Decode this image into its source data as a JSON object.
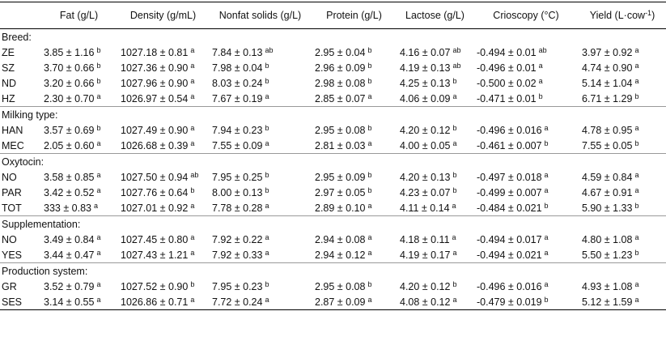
{
  "table": {
    "columns": [
      "Fat (g/L)",
      "Density (g/mL)",
      "Nonfat solids (g/L)",
      "Protein (g/L)",
      "Lactose (g/L)",
      "Crioscopy (°C)",
      [
        "Yield (L·cow",
        "-1",
        ")"
      ]
    ],
    "groups": [
      {
        "label": "Breed:",
        "rows": [
          {
            "label": "ZE",
            "cells": [
              [
                "3.85 ± 1.16",
                "b"
              ],
              [
                "1027.18 ± 0.81",
                "a"
              ],
              [
                "7.84 ± 0.13",
                "ab"
              ],
              [
                "2.95 ± 0.04",
                "b"
              ],
              [
                "4.16 ± 0.07",
                "ab"
              ],
              [
                "-0.494 ± 0.01",
                "ab"
              ],
              [
                "3.97 ± 0.92",
                "a"
              ]
            ]
          },
          {
            "label": "SZ",
            "cells": [
              [
                "3.70 ± 0.66",
                "b"
              ],
              [
                "1027.36 ± 0.90",
                "a"
              ],
              [
                "7.98 ± 0.04",
                "b"
              ],
              [
                "2.96 ± 0.09",
                "b"
              ],
              [
                "4.19 ± 0.13",
                "ab"
              ],
              [
                "-0.496 ± 0.01",
                "a"
              ],
              [
                "4.74 ± 0.90",
                "a"
              ]
            ]
          },
          {
            "label": "ND",
            "cells": [
              [
                "3.20 ± 0.66",
                "b"
              ],
              [
                "1027.96 ± 0.90",
                "a"
              ],
              [
                "8.03 ± 0.24",
                "b"
              ],
              [
                "2.98 ± 0.08",
                "b"
              ],
              [
                "4.25 ± 0.13",
                "b"
              ],
              [
                "-0.500 ± 0.02",
                "a"
              ],
              [
                "5.14 ± 1.04",
                "a"
              ]
            ]
          },
          {
            "label": "HZ",
            "cells": [
              [
                "2.30 ± 0.70",
                "a"
              ],
              [
                "1026.97 ± 0.54",
                "a"
              ],
              [
                "7.67 ± 0.19",
                "a"
              ],
              [
                "2.85 ± 0.07",
                "a"
              ],
              [
                "4.06 ± 0.09",
                "a"
              ],
              [
                "-0.471 ± 0.01",
                "b"
              ],
              [
                "6.71 ± 1.29",
                "b"
              ]
            ]
          }
        ]
      },
      {
        "label": "Milking type:",
        "rows": [
          {
            "label": "HAN",
            "cells": [
              [
                "3.57 ± 0.69",
                "b"
              ],
              [
                "1027.49 ± 0.90",
                "a"
              ],
              [
                "7.94 ± 0.23",
                "b"
              ],
              [
                "2.95 ± 0.08",
                "b"
              ],
              [
                "4.20 ± 0.12",
                "b"
              ],
              [
                "-0.496 ± 0.016",
                "a"
              ],
              [
                "4.78 ± 0.95",
                "a"
              ]
            ]
          },
          {
            "label": "MEC",
            "cells": [
              [
                "2.05 ± 0.60",
                "a"
              ],
              [
                "1026.68 ± 0.39",
                "a"
              ],
              [
                "7.55 ± 0.09",
                "a"
              ],
              [
                "2.81 ± 0.03",
                "a"
              ],
              [
                "4.00 ± 0.05",
                "a"
              ],
              [
                "-0.461 ± 0.007",
                "b"
              ],
              [
                "7.55 ± 0.05",
                "b"
              ]
            ]
          }
        ]
      },
      {
        "label": "Oxytocin:",
        "rows": [
          {
            "label": "NO",
            "cells": [
              [
                "3.58 ± 0.85",
                "a"
              ],
              [
                "1027.50 ± 0.94",
                "ab"
              ],
              [
                "7.95 ± 0.25",
                "b"
              ],
              [
                "2.95 ± 0.09",
                "b"
              ],
              [
                "4.20 ± 0.13",
                "b"
              ],
              [
                "-0.497 ± 0.018",
                "a"
              ],
              [
                "4.59 ± 0.84",
                "a"
              ]
            ]
          },
          {
            "label": "PAR",
            "cells": [
              [
                "3.42 ± 0.52",
                "a"
              ],
              [
                "1027.76 ± 0.64",
                "b"
              ],
              [
                "8.00 ± 0.13",
                "b"
              ],
              [
                "2.97 ± 0.05",
                "b"
              ],
              [
                "4.23 ± 0.07",
                "b"
              ],
              [
                "-0.499 ± 0.007",
                "a"
              ],
              [
                "4.67 ± 0.91",
                "a"
              ]
            ]
          },
          {
            "label": "TOT",
            "cells": [
              [
                "333 ± 0.83",
                "a"
              ],
              [
                "1027.01 ± 0.92",
                "a"
              ],
              [
                "7.78 ± 0.28",
                "a"
              ],
              [
                "2.89 ± 0.10",
                "a"
              ],
              [
                "4.11 ± 0.14",
                "a"
              ],
              [
                "-0.484 ± 0.021",
                "b"
              ],
              [
                "5.90 ± 1.33",
                "b"
              ]
            ]
          }
        ]
      },
      {
        "label": "Supplementation:",
        "rows": [
          {
            "label": "NO",
            "cells": [
              [
                "3.49 ± 0.84",
                "a"
              ],
              [
                "1027.45 ± 0.80",
                "a"
              ],
              [
                "7.92 ± 0.22",
                "a"
              ],
              [
                "2.94 ± 0.08",
                "a"
              ],
              [
                "4.18 ± 0.11",
                "a"
              ],
              [
                "-0.494 ± 0.017",
                "a"
              ],
              [
                "4.80 ± 1.08",
                "a"
              ]
            ]
          },
          {
            "label": "YES",
            "cells": [
              [
                "3.44 ± 0.47",
                "a"
              ],
              [
                "1027.43 ± 1.21",
                "a"
              ],
              [
                "7.92 ± 0.33",
                "a"
              ],
              [
                "2.94 ± 0.12",
                "a"
              ],
              [
                "4.19 ± 0.17",
                "a"
              ],
              [
                "-0.494 ± 0.021",
                "a"
              ],
              [
                "5.50 ± 1.23",
                "b"
              ]
            ]
          }
        ]
      },
      {
        "label": "Production system:",
        "rows": [
          {
            "label": "GR",
            "cells": [
              [
                "3.52 ± 0.79",
                "a"
              ],
              [
                "1027.52 ± 0.90",
                "b"
              ],
              [
                "7.95 ± 0.23",
                "b"
              ],
              [
                "2.95 ± 0.08",
                "b"
              ],
              [
                "4.20 ± 0.12",
                "b"
              ],
              [
                "-0.496 ± 0.016",
                "a"
              ],
              [
                "4.93 ± 1.08",
                "a"
              ]
            ]
          },
          {
            "label": "SES",
            "cells": [
              [
                "3.14 ± 0.55",
                "a"
              ],
              [
                "1026.86 ± 0.71",
                "a"
              ],
              [
                "7.72 ± 0.24",
                "a"
              ],
              [
                "2.87 ± 0.09",
                "a"
              ],
              [
                "4.08 ± 0.12",
                "a"
              ],
              [
                "-0.479 ± 0.019",
                "b"
              ],
              [
                "5.12 ± 1.59",
                "a"
              ]
            ]
          }
        ]
      }
    ]
  }
}
